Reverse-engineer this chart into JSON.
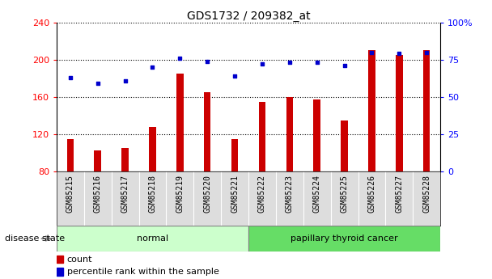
{
  "title": "GDS1732 / 209382_at",
  "samples": [
    "GSM85215",
    "GSM85216",
    "GSM85217",
    "GSM85218",
    "GSM85219",
    "GSM85220",
    "GSM85221",
    "GSM85222",
    "GSM85223",
    "GSM85224",
    "GSM85225",
    "GSM85226",
    "GSM85227",
    "GSM85228"
  ],
  "counts": [
    115,
    103,
    105,
    128,
    185,
    165,
    115,
    155,
    160,
    157,
    135,
    210,
    205,
    210
  ],
  "percentiles": [
    63,
    59,
    61,
    70,
    76,
    74,
    64,
    72,
    73,
    73,
    71,
    80,
    79,
    80
  ],
  "groups": [
    "normal",
    "normal",
    "normal",
    "normal",
    "normal",
    "normal",
    "normal",
    "papillary thyroid cancer",
    "papillary thyroid cancer",
    "papillary thyroid cancer",
    "papillary thyroid cancer",
    "papillary thyroid cancer",
    "papillary thyroid cancer",
    "papillary thyroid cancer"
  ],
  "bar_color": "#cc0000",
  "dot_color": "#0000cc",
  "ylim_left": [
    80,
    240
  ],
  "ylim_right": [
    0,
    100
  ],
  "yticks_left": [
    80,
    120,
    160,
    200,
    240
  ],
  "yticks_right": [
    0,
    25,
    50,
    75,
    100
  ],
  "ytick_labels_right": [
    "0",
    "25",
    "50",
    "75",
    "100%"
  ],
  "normal_color": "#ccffcc",
  "cancer_color": "#66dd66",
  "xtick_bg_color": "#dddddd",
  "disease_state_label": "disease state",
  "legend_count": "count",
  "legend_percentile": "percentile rank within the sample",
  "bar_width": 0.25
}
